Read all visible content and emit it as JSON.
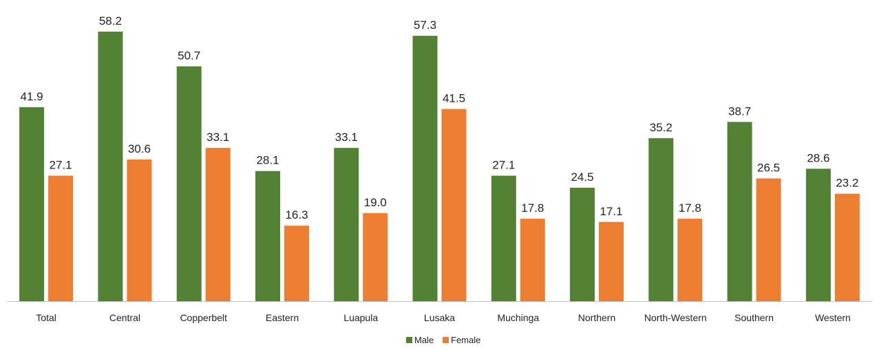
{
  "chart_data": {
    "type": "bar",
    "categories": [
      "Total",
      "Central",
      "Copperbelt",
      "Eastern",
      "Luapula",
      "Lusaka",
      "Muchinga",
      "Northern",
      "North-Western",
      "Southern",
      "Western"
    ],
    "series": [
      {
        "name": "Male",
        "color": "#548235",
        "values": [
          41.9,
          58.2,
          50.7,
          28.1,
          33.1,
          57.3,
          27.1,
          24.5,
          35.2,
          38.7,
          28.6
        ]
      },
      {
        "name": "Female",
        "color": "#ED7D31",
        "values": [
          27.1,
          30.6,
          33.1,
          16.3,
          19.0,
          41.5,
          17.8,
          17.1,
          17.8,
          26.5,
          23.2
        ]
      }
    ],
    "value_labels": [
      [
        "41.9",
        "58.2",
        "50.7",
        "28.1",
        "33.1",
        "57.3",
        "27.1",
        "24.5",
        "35.2",
        "38.7",
        "28.6"
      ],
      [
        "27.1",
        "30.6",
        "33.1",
        "16.3",
        "19.0",
        "41.5",
        "17.8",
        "17.1",
        "17.8",
        "26.5",
        "23.2"
      ]
    ],
    "title": "",
    "xlabel": "",
    "ylabel": "",
    "ylim": [
      0,
      60
    ],
    "grid": false,
    "legend_position": "bottom-center"
  }
}
